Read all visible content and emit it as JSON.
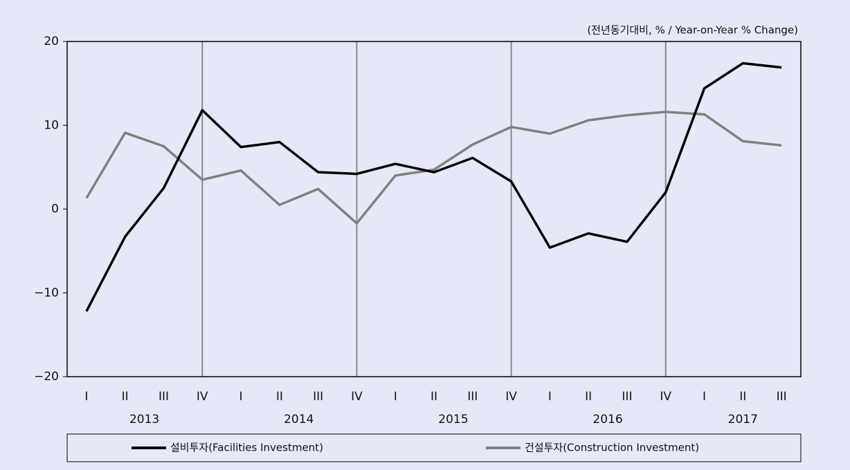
{
  "chart_data": {
    "type": "line",
    "unit_note": "(전년동기대비, % / Year-on-Year % Change)",
    "categories": [
      "I",
      "II",
      "III",
      "IV",
      "I",
      "II",
      "III",
      "IV",
      "I",
      "II",
      "III",
      "IV",
      "I",
      "II",
      "III",
      "IV",
      "I",
      "II",
      "III"
    ],
    "x_groups": [
      "2013",
      "2014",
      "2015",
      "2016",
      "2017"
    ],
    "series": [
      {
        "name": "설비투자(Facilities Investment)",
        "color": "#000000",
        "values": [
          -12.2,
          -3.3,
          2.5,
          11.8,
          7.4,
          8.0,
          4.4,
          4.2,
          5.4,
          4.4,
          6.1,
          3.3,
          -4.6,
          -2.9,
          -3.9,
          2.0,
          14.4,
          17.4,
          16.9
        ]
      },
      {
        "name": "건설투자(Construction Investment)",
        "color": "#808080",
        "values": [
          1.3,
          9.1,
          7.5,
          3.5,
          4.6,
          0.5,
          2.4,
          -1.7,
          4.0,
          4.7,
          7.7,
          9.8,
          9.0,
          10.6,
          11.2,
          11.6,
          11.3,
          8.1,
          7.6
        ]
      }
    ],
    "ylim": [
      -20,
      20
    ],
    "yticks": [
      {
        "value": -20,
        "label": "−20"
      },
      {
        "value": -10,
        "label": "−10"
      },
      0,
      10,
      20
    ],
    "grid": false,
    "legend": "bottom"
  }
}
